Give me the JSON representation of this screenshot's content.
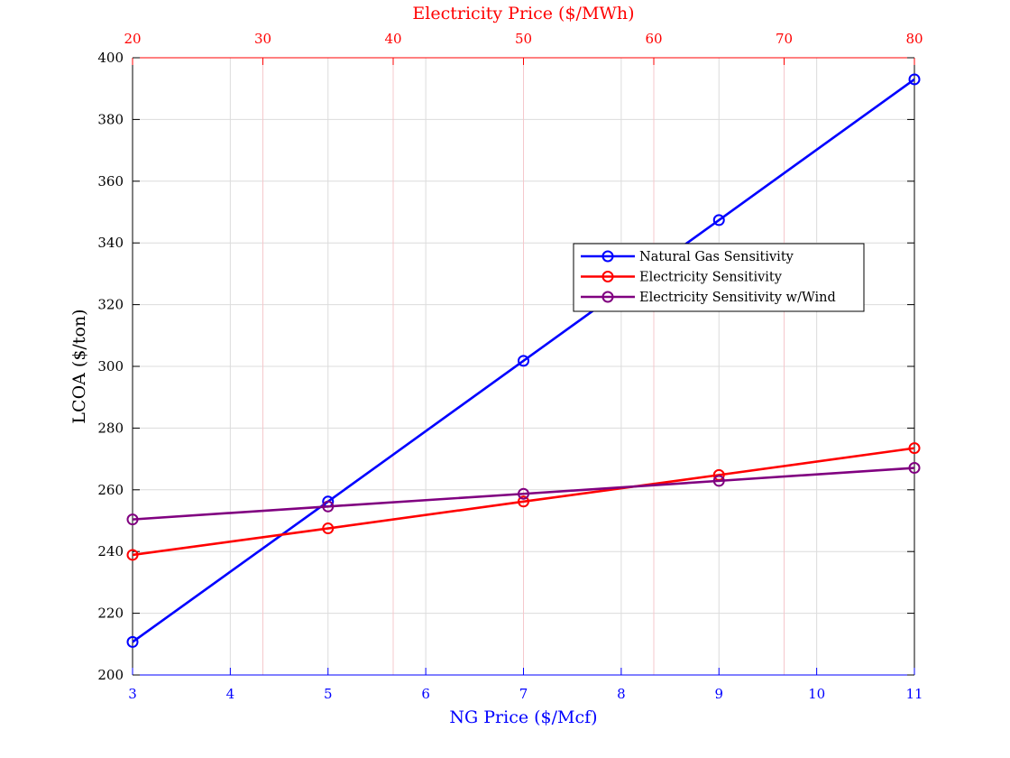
{
  "chart_data": {
    "type": "line",
    "title": "",
    "xlabel": "NG Price ($/Mcf)",
    "x2label": "Electricity Price ($/MWh)",
    "ylabel": "LCOA ($/ton)",
    "xlim": [
      3,
      11
    ],
    "x2lim": [
      20,
      80
    ],
    "ylim": [
      200,
      400
    ],
    "x_ticks": [
      "3",
      "4",
      "5",
      "6",
      "7",
      "8",
      "9",
      "10",
      "11"
    ],
    "x2_ticks": [
      "20",
      "30",
      "40",
      "50",
      "60",
      "70",
      "80"
    ],
    "y_ticks": [
      "200",
      "220",
      "240",
      "260",
      "280",
      "300",
      "320",
      "340",
      "360",
      "380",
      "400"
    ],
    "grid": true,
    "legend_position": "center-right",
    "colors": {
      "bottom_axis": "#0000ff",
      "top_axis": "#ff0000",
      "left_axis": "#000000",
      "grid": "#dcdcdc",
      "top_grid": "#f5c8cc"
    },
    "series": [
      {
        "name": "Natural Gas Sensitivity",
        "axis": "bottom",
        "color": "#0000ff",
        "x": [
          3,
          5,
          7,
          9,
          11
        ],
        "y": [
          210.7,
          256.2,
          301.8,
          347.4,
          393.0
        ]
      },
      {
        "name": "Electricity Sensitivity",
        "axis": "top",
        "color": "#ff0000",
        "x": [
          20,
          35,
          50,
          65,
          80
        ],
        "y": [
          238.9,
          247.5,
          256.2,
          264.8,
          273.5
        ]
      },
      {
        "name": "Electricity Sensitivity w/Wind",
        "axis": "top",
        "color": "#800080",
        "x": [
          20,
          35,
          50,
          65,
          80
        ],
        "y": [
          250.4,
          254.6,
          258.7,
          262.9,
          267.1
        ]
      }
    ]
  }
}
